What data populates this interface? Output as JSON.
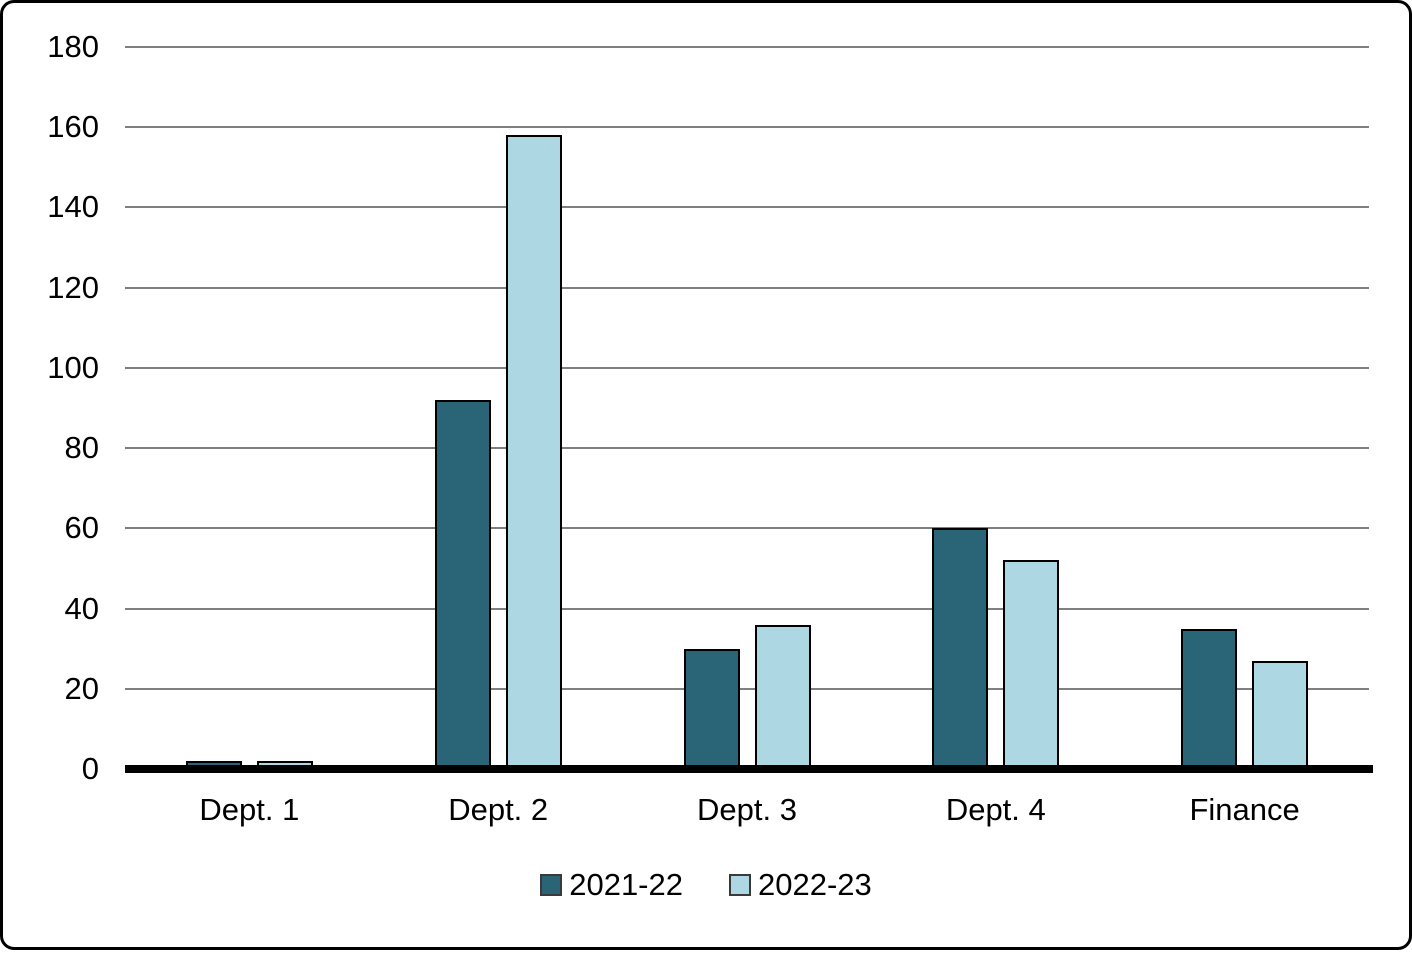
{
  "chart_data": {
    "type": "bar",
    "categories": [
      "Dept. 1",
      "Dept. 2",
      "Dept. 3",
      "Dept. 4",
      "Finance"
    ],
    "series": [
      {
        "name": "2021-22",
        "color": "#2A6477",
        "values": [
          2,
          92,
          30,
          60,
          35
        ]
      },
      {
        "name": "2022-23",
        "color": "#ADD8E3",
        "values": [
          2,
          158,
          36,
          52,
          27
        ]
      }
    ],
    "title": "",
    "xlabel": "",
    "ylabel": "",
    "ylim": [
      0,
      180
    ],
    "ytick_step": 20,
    "yticks": [
      0,
      20,
      40,
      60,
      80,
      100,
      120,
      140,
      160,
      180
    ],
    "grid": "horizontal",
    "gridline_color": "#7F7F7F",
    "axis_line_color": "#000000",
    "bar_border_color": "#000000",
    "legend_position": "bottom"
  }
}
